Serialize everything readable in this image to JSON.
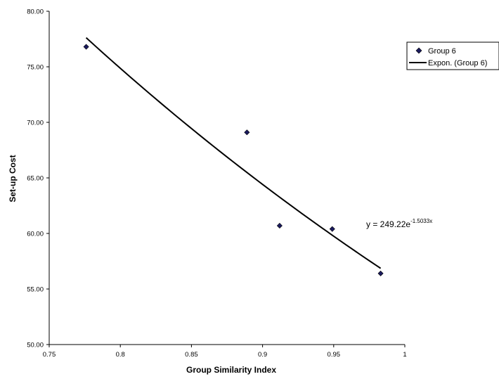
{
  "chart_data": {
    "type": "scatter",
    "xlabel": "Group Similarity Index",
    "ylabel": "Set-up Cost",
    "xlim": [
      0.75,
      1
    ],
    "ylim": [
      50,
      80
    ],
    "x_ticks": [
      "0.75",
      "0.8",
      "0.85",
      "0.9",
      "0.95",
      "1"
    ],
    "y_ticks": [
      "50.00",
      "55.00",
      "60.00",
      "65.00",
      "70.00",
      "75.00",
      "80.00"
    ],
    "series": [
      {
        "name": "Group 6",
        "marker": "diamond",
        "color": "#1a1a5e",
        "points": [
          {
            "x": 0.776,
            "y": 76.8
          },
          {
            "x": 0.889,
            "y": 69.1
          },
          {
            "x": 0.912,
            "y": 60.7
          },
          {
            "x": 0.949,
            "y": 60.4
          },
          {
            "x": 0.983,
            "y": 56.4
          }
        ]
      }
    ],
    "trendline": {
      "name": "Expon. (Group 6)",
      "type": "exponential",
      "a": 249.22,
      "b": -1.5033,
      "x_range": [
        0.776,
        0.983
      ],
      "color": "#000000",
      "equation_prefix": "y = 249.22e",
      "equation_exponent": "-1.5033x"
    },
    "legend_position": "top-right",
    "grid": false
  }
}
